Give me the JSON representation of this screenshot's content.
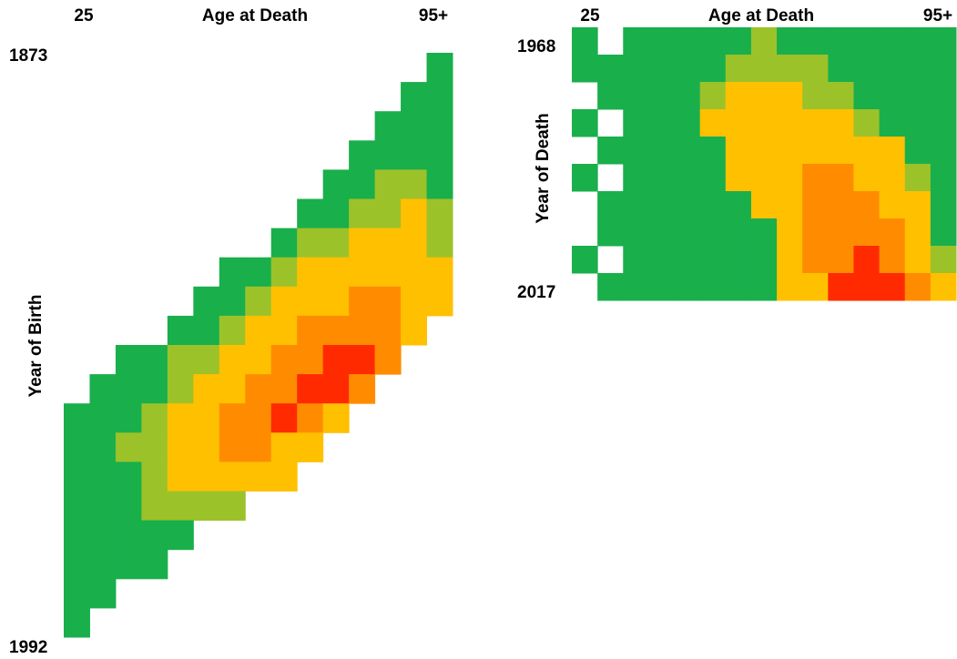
{
  "chart_data": [
    {
      "type": "heatmap",
      "x_label": "Age at Death",
      "y_label": "Year of Birth",
      "x_categories": [
        "25",
        null,
        null,
        null,
        null,
        null,
        null,
        null,
        null,
        null,
        null,
        null,
        null,
        null,
        "95+"
      ],
      "y_categories": [
        "1873",
        null,
        null,
        null,
        null,
        null,
        null,
        null,
        null,
        null,
        null,
        null,
        null,
        null,
        null,
        null,
        null,
        null,
        null,
        "1992"
      ],
      "color_scale": [
        "#19af4b",
        "#9cc22a",
        "#ffc000",
        "#ff8c00",
        "#ff2a00"
      ],
      "values": [
        [
          null,
          null,
          null,
          null,
          null,
          null,
          null,
          null,
          null,
          null,
          null,
          null,
          null,
          null,
          1
        ],
        [
          null,
          null,
          null,
          null,
          null,
          null,
          null,
          null,
          null,
          null,
          null,
          null,
          null,
          1,
          1
        ],
        [
          null,
          null,
          null,
          null,
          null,
          null,
          null,
          null,
          null,
          null,
          null,
          null,
          1,
          1,
          1
        ],
        [
          null,
          null,
          null,
          null,
          null,
          null,
          null,
          null,
          null,
          null,
          null,
          1,
          1,
          1,
          1
        ],
        [
          null,
          null,
          null,
          null,
          null,
          null,
          null,
          null,
          null,
          null,
          1,
          1,
          2,
          2,
          1
        ],
        [
          null,
          null,
          null,
          null,
          null,
          null,
          null,
          null,
          null,
          1,
          1,
          2,
          2,
          3,
          2
        ],
        [
          null,
          null,
          null,
          null,
          null,
          null,
          null,
          null,
          1,
          2,
          2,
          3,
          3,
          3,
          2
        ],
        [
          null,
          null,
          null,
          null,
          null,
          null,
          1,
          1,
          2,
          3,
          3,
          3,
          3,
          3,
          3
        ],
        [
          null,
          null,
          null,
          null,
          null,
          1,
          1,
          2,
          3,
          3,
          3,
          4,
          4,
          3,
          3
        ],
        [
          null,
          null,
          null,
          null,
          1,
          1,
          2,
          3,
          3,
          4,
          4,
          4,
          4,
          3,
          null
        ],
        [
          null,
          null,
          1,
          1,
          2,
          2,
          3,
          3,
          4,
          4,
          5,
          5,
          4,
          null,
          null
        ],
        [
          null,
          1,
          1,
          1,
          2,
          3,
          3,
          4,
          4,
          5,
          5,
          4,
          null,
          null,
          null
        ],
        [
          1,
          1,
          1,
          2,
          3,
          3,
          4,
          4,
          5,
          4,
          3,
          null,
          null,
          null,
          null
        ],
        [
          1,
          1,
          2,
          2,
          3,
          3,
          4,
          4,
          3,
          3,
          null,
          null,
          null,
          null,
          null
        ],
        [
          1,
          1,
          1,
          2,
          3,
          3,
          3,
          3,
          3,
          null,
          null,
          null,
          null,
          null,
          null
        ],
        [
          1,
          1,
          1,
          2,
          2,
          2,
          2,
          null,
          null,
          null,
          null,
          null,
          null,
          null,
          null
        ],
        [
          1,
          1,
          1,
          1,
          1,
          null,
          null,
          null,
          null,
          null,
          null,
          null,
          null,
          null,
          null
        ],
        [
          1,
          1,
          1,
          1,
          null,
          null,
          null,
          null,
          null,
          null,
          null,
          null,
          null,
          null,
          null
        ],
        [
          1,
          1,
          null,
          null,
          null,
          null,
          null,
          null,
          null,
          null,
          null,
          null,
          null,
          null,
          null
        ],
        [
          1,
          null,
          null,
          null,
          null,
          null,
          null,
          null,
          null,
          null,
          null,
          null,
          null,
          null,
          null
        ]
      ]
    },
    {
      "type": "heatmap",
      "x_label": "Age at Death",
      "y_label": "Year of Death",
      "x_categories": [
        "25",
        null,
        null,
        null,
        null,
        null,
        null,
        null,
        null,
        null,
        null,
        null,
        null,
        null,
        "95+"
      ],
      "y_categories": [
        "1968",
        null,
        null,
        null,
        null,
        null,
        null,
        null,
        null,
        "2017"
      ],
      "color_scale": [
        "#19af4b",
        "#9cc22a",
        "#ffc000",
        "#ff8c00",
        "#ff2a00"
      ],
      "values": [
        [
          1,
          null,
          1,
          1,
          1,
          1,
          1,
          2,
          1,
          1,
          1,
          1,
          1,
          1,
          1
        ],
        [
          1,
          1,
          1,
          1,
          1,
          1,
          2,
          2,
          2,
          2,
          1,
          1,
          1,
          1,
          1
        ],
        [
          null,
          1,
          1,
          1,
          1,
          2,
          3,
          3,
          3,
          2,
          2,
          1,
          1,
          1,
          1
        ],
        [
          1,
          null,
          1,
          1,
          1,
          3,
          3,
          3,
          3,
          3,
          3,
          2,
          1,
          1,
          1
        ],
        [
          null,
          1,
          1,
          1,
          1,
          1,
          3,
          3,
          3,
          3,
          3,
          3,
          3,
          1,
          1
        ],
        [
          1,
          null,
          1,
          1,
          1,
          1,
          3,
          3,
          3,
          4,
          4,
          3,
          3,
          2,
          1
        ],
        [
          null,
          1,
          1,
          1,
          1,
          1,
          1,
          3,
          3,
          4,
          4,
          4,
          3,
          3,
          1
        ],
        [
          null,
          1,
          1,
          1,
          1,
          1,
          1,
          1,
          3,
          4,
          4,
          4,
          4,
          3,
          1
        ],
        [
          1,
          null,
          1,
          1,
          1,
          1,
          1,
          1,
          3,
          4,
          4,
          5,
          4,
          3,
          2
        ],
        [
          null,
          1,
          1,
          1,
          1,
          1,
          1,
          1,
          3,
          3,
          5,
          5,
          5,
          4,
          3
        ]
      ]
    }
  ]
}
